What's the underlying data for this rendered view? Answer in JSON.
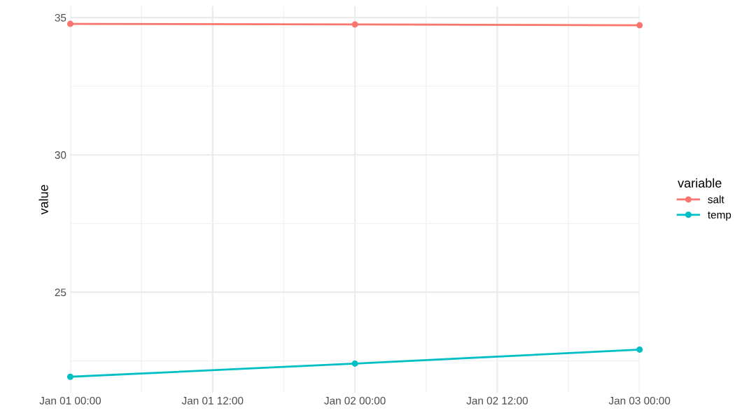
{
  "chart_data": {
    "type": "line",
    "ylabel": "value",
    "legend_title": "variable",
    "legend": "right",
    "grid": true,
    "marker": "circle",
    "line_style": "solid",
    "x": [
      "--01-01T00:00",
      "--01-02T00:00",
      "--01-03T00:00"
    ],
    "series": [
      {
        "name": "salt",
        "color": "#f8766d",
        "values": [
          34.77,
          34.75,
          34.72
        ]
      },
      {
        "name": "temp",
        "color": "#00bfc4",
        "values": [
          21.92,
          22.4,
          22.91
        ]
      }
    ],
    "xlim": [
      "--01-01T00:00",
      "--01-03T00:00"
    ],
    "xticks": [
      {
        "value": "--01-01T00:00",
        "label": "Jan 01 00:00"
      },
      {
        "value": "--01-01T06:00",
        "label": null
      },
      {
        "value": "--01-01T12:00",
        "label": "Jan 01 12:00"
      },
      {
        "value": "--01-01T18:00",
        "label": null
      },
      {
        "value": "--01-02T00:00",
        "label": "Jan 02 00:00"
      },
      {
        "value": "--01-02T06:00",
        "label": null
      },
      {
        "value": "--01-02T12:00",
        "label": "Jan 02 12:00"
      },
      {
        "value": "--01-02T18:00",
        "label": null
      },
      {
        "value": "--01-03T00:00",
        "label": "Jan 03 00:00"
      }
    ],
    "ylim": [
      21.34,
      35.41
    ],
    "yticks": [
      {
        "value": 22.5,
        "label": null
      },
      25,
      {
        "value": 27.5,
        "label": null
      },
      30,
      {
        "value": 32.5,
        "label": null
      },
      35
    ]
  }
}
